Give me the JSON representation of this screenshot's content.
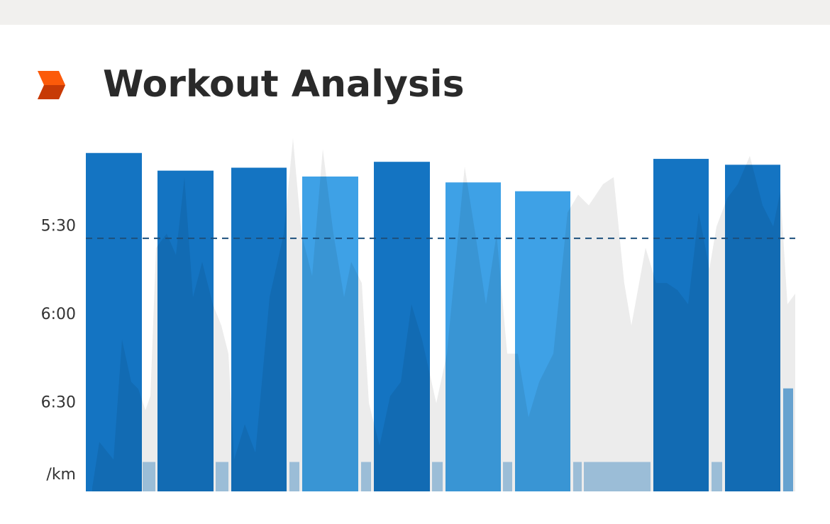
{
  "chart_data": {
    "type": "interval-bar",
    "title": "Workout Analysis",
    "y_unit_label": "/km",
    "xlim": [
      0,
      1000
    ],
    "ylim": [
      420,
      300
    ],
    "yticks": [
      {
        "value": 330,
        "label": "5:30"
      },
      {
        "value": 360,
        "label": "6:00"
      },
      {
        "value": 390,
        "label": "6:30"
      }
    ],
    "reference_line": 334,
    "bar_start": [
      0,
      80,
      101,
      183,
      205,
      287,
      305,
      388,
      406,
      488,
      507,
      588,
      605,
      687,
      702,
      800,
      882,
      901,
      983
    ],
    "bar_end": [
      79,
      98,
      180,
      201,
      283,
      301,
      384,
      402,
      485,
      503,
      585,
      601,
      683,
      699,
      796,
      878,
      897,
      979,
      997
    ],
    "values": [
      305,
      410,
      311,
      410,
      310,
      410,
      313,
      410,
      308,
      410,
      315,
      410,
      318,
      410,
      410,
      307,
      410,
      309,
      385
    ],
    "colors": [
      "#1474c2",
      "#a8cde9",
      "#1474c2",
      "#a8cde9",
      "#1474c2",
      "#a8cde9",
      "#3ea1e6",
      "#a8cde9",
      "#1474c2",
      "#a8cde9",
      "#3ea1e6",
      "#a8cde9",
      "#3ea1e6",
      "#a8cde9",
      "#a8cde9",
      "#1474c2",
      "#a8cde9",
      "#1474c2",
      "#70b0e0"
    ],
    "profile": {
      "y2lim": [
        0,
        100
      ],
      "x": [
        9,
        19,
        39,
        51,
        64,
        74,
        84,
        91,
        99,
        114,
        127,
        139,
        151,
        164,
        179,
        191,
        201,
        209,
        224,
        239,
        259,
        279,
        292,
        304,
        319,
        334,
        349,
        364,
        374,
        389,
        399,
        414,
        429,
        444,
        459,
        474,
        494,
        509,
        534,
        549,
        564,
        579,
        594,
        609,
        624,
        639,
        659,
        679,
        694,
        709,
        729,
        744,
        759,
        769,
        789,
        804,
        819,
        834,
        849,
        864,
        879,
        889,
        904,
        919,
        936,
        954,
        969,
        979,
        989,
        1000
      ],
      "values": [
        1,
        14,
        9,
        43,
        31,
        29,
        23,
        27,
        69,
        73,
        67,
        89,
        55,
        65,
        53,
        47,
        39,
        9,
        19,
        11,
        55,
        73,
        100,
        73,
        61,
        97,
        73,
        55,
        65,
        59,
        25,
        13,
        27,
        31,
        53,
        43,
        25,
        39,
        92,
        73,
        53,
        73,
        39,
        39,
        21,
        31,
        39,
        79,
        84,
        81,
        87,
        89,
        59,
        47,
        69,
        59,
        59,
        57,
        53,
        79,
        63,
        75,
        83,
        87,
        95,
        81,
        75,
        85,
        53,
        56
      ],
      "color": "#000000"
    }
  }
}
